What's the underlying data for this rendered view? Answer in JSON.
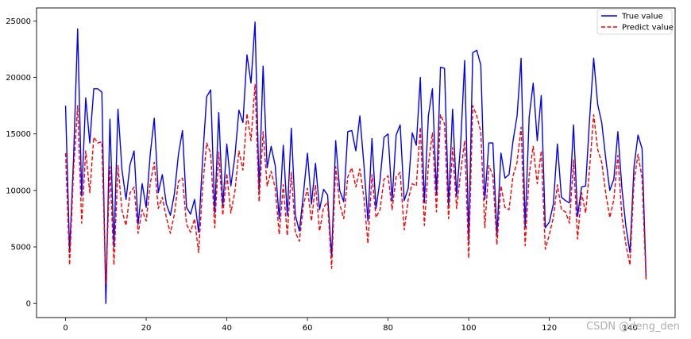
{
  "chart_data": {
    "type": "line",
    "title": "",
    "xlabel": "",
    "ylabel": "",
    "xlim": [
      -7.2,
      151.2
    ],
    "ylim": [
      -1250,
      26150
    ],
    "x_ticks": [
      0,
      20,
      40,
      60,
      80,
      100,
      120,
      140
    ],
    "y_ticks": [
      0,
      5000,
      10000,
      15000,
      20000,
      25000
    ],
    "grid": false,
    "legend_position": "top-right",
    "x": [
      0,
      1,
      2,
      3,
      4,
      5,
      6,
      7,
      8,
      9,
      10,
      11,
      12,
      13,
      14,
      15,
      16,
      17,
      18,
      19,
      20,
      21,
      22,
      23,
      24,
      25,
      26,
      27,
      28,
      29,
      30,
      31,
      32,
      33,
      34,
      35,
      36,
      37,
      38,
      39,
      40,
      41,
      42,
      43,
      44,
      45,
      46,
      47,
      48,
      49,
      50,
      51,
      52,
      53,
      54,
      55,
      56,
      57,
      58,
      59,
      60,
      61,
      62,
      63,
      64,
      65,
      66,
      67,
      68,
      69,
      70,
      71,
      72,
      73,
      74,
      75,
      76,
      77,
      78,
      79,
      80,
      81,
      82,
      83,
      84,
      85,
      86,
      87,
      88,
      89,
      90,
      91,
      92,
      93,
      94,
      95,
      96,
      97,
      98,
      99,
      100,
      101,
      102,
      103,
      104,
      105,
      106,
      107,
      108,
      109,
      110,
      111,
      112,
      113,
      114,
      115,
      116,
      117,
      118,
      119,
      120,
      121,
      122,
      123,
      124,
      125,
      126,
      127,
      128,
      129,
      130,
      131,
      132,
      133,
      134,
      135,
      136,
      137,
      138,
      139,
      140,
      141,
      142,
      143,
      144
    ],
    "series": [
      {
        "name": "True value",
        "color": "#0000ff",
        "dash": "solid",
        "values": [
          17500,
          4500,
          13000,
          24300,
          9500,
          18200,
          14200,
          19000,
          19000,
          18700,
          0,
          16300,
          5000,
          17200,
          11800,
          9200,
          12300,
          13500,
          7000,
          10600,
          8500,
          13200,
          16400,
          9800,
          11400,
          8800,
          7800,
          9700,
          13200,
          15300,
          8500,
          7900,
          9200,
          6300,
          12800,
          18300,
          18900,
          8000,
          16900,
          8600,
          14100,
          10400,
          13000,
          17100,
          16000,
          22000,
          19500,
          24900,
          10000,
          21000,
          12000,
          13900,
          12200,
          7500,
          14000,
          7800,
          15500,
          7800,
          6400,
          9700,
          13300,
          8800,
          12400,
          8300,
          10100,
          9600,
          4100,
          14400,
          10000,
          9000,
          15200,
          15300,
          13500,
          16600,
          12300,
          7300,
          14600,
          8400,
          10900,
          14700,
          15000,
          9100,
          14900,
          15800,
          9100,
          10200,
          15100,
          14000,
          20000,
          8900,
          16600,
          19000,
          9600,
          20900,
          20800,
          8700,
          17200,
          9500,
          14100,
          21500,
          5500,
          22200,
          22400,
          21100,
          9200,
          14200,
          14200,
          6000,
          13300,
          11100,
          11400,
          14400,
          16600,
          21700,
          6700,
          16500,
          19500,
          14400,
          18400,
          6700,
          7200,
          8800,
          14100,
          9400,
          9100,
          8900,
          15800,
          7700,
          10300,
          10400,
          16400,
          21700,
          17600,
          16000,
          12800,
          10000,
          11000,
          15200,
          10200,
          6800,
          4500,
          12100,
          14900,
          13700,
          2300
        ]
      },
      {
        "name": "Predict value",
        "color": "#ff0000",
        "dash": "dashed",
        "values": [
          13300,
          3400,
          11900,
          17500,
          7100,
          13500,
          9800,
          14700,
          14200,
          14300,
          1700,
          12100,
          3400,
          12200,
          8200,
          6900,
          9800,
          10300,
          6200,
          8300,
          7300,
          10600,
          12500,
          8400,
          9400,
          7600,
          6200,
          7900,
          10800,
          11100,
          7000,
          6300,
          7500,
          4500,
          10300,
          14200,
          13300,
          6700,
          13400,
          7800,
          11500,
          8000,
          9900,
          13500,
          11800,
          16800,
          14400,
          19400,
          9000,
          15200,
          10400,
          11700,
          10200,
          6100,
          10500,
          6000,
          11600,
          6300,
          5500,
          8700,
          10200,
          7300,
          10500,
          6400,
          8500,
          9000,
          3100,
          12100,
          8800,
          7500,
          11200,
          12000,
          10300,
          11900,
          9400,
          5300,
          11400,
          7600,
          8300,
          11000,
          11300,
          8300,
          11200,
          11600,
          6500,
          9200,
          10600,
          10400,
          15600,
          6900,
          12300,
          15100,
          8100,
          16700,
          15900,
          7500,
          13800,
          8400,
          11600,
          14400,
          4000,
          17500,
          16600,
          15200,
          6700,
          12200,
          11300,
          5200,
          10400,
          8500,
          8300,
          11300,
          12500,
          15600,
          5100,
          11400,
          13900,
          10600,
          13500,
          4800,
          6100,
          7600,
          10500,
          8300,
          8100,
          7100,
          12700,
          5700,
          9800,
          8000,
          12000,
          16700,
          13600,
          12500,
          9700,
          7600,
          9200,
          13100,
          7700,
          5200,
          3400,
          10800,
          13200,
          11100,
          2100
        ]
      }
    ]
  },
  "watermark": "CSDN @deng_den"
}
